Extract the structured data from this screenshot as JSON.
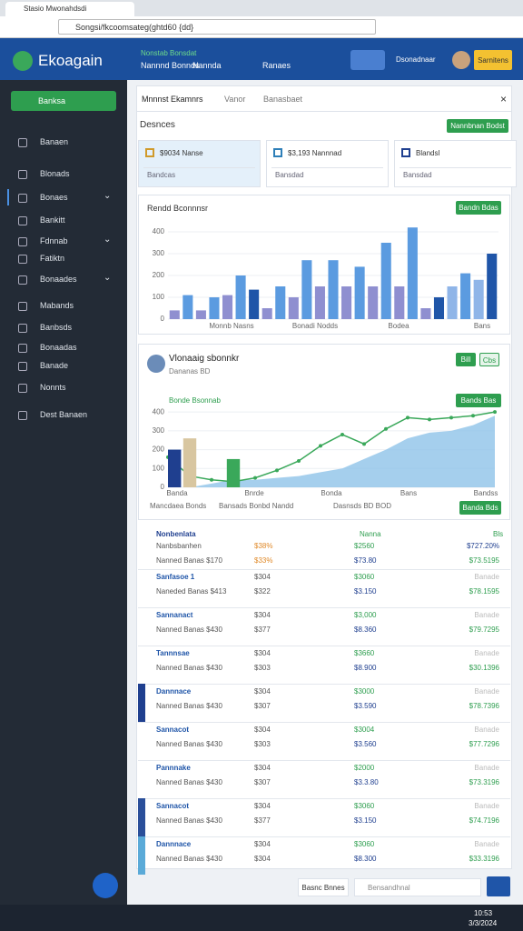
{
  "browser": {
    "tab_title": "Stasio Mwonahdsdi",
    "url": "Songsi/fkcoomsateg(ghtd60 {dd}"
  },
  "header": {
    "logo": "Ekoagain",
    "nav_caption": "Nonstab Bonsdat",
    "nav": [
      "Nannnd Bonnds",
      "Nannda",
      "Ranaes"
    ],
    "user": "Dsonadnaar",
    "action": "Sarnitens"
  },
  "sidebar": {
    "button": "Banksa",
    "items": [
      {
        "label": "Banaen"
      },
      {
        "label": "Blonads"
      },
      {
        "label": "Bonaes",
        "expand": true
      },
      {
        "label": "Bankitt"
      },
      {
        "label": "Fdnnab",
        "expand": true
      },
      {
        "label": "Fatiktn"
      },
      {
        "label": "Bonaades",
        "expand": true
      },
      {
        "label": "Mabands"
      },
      {
        "label": "Banbsds"
      },
      {
        "label": "Bonaadas"
      },
      {
        "label": "Banade"
      },
      {
        "label": "Nonnts"
      },
      {
        "label": "Dest Banaen"
      }
    ]
  },
  "tabs": [
    "Mnnnst Ekamnrs",
    "Vanor",
    "Banasbaet"
  ],
  "section": {
    "title": "Desnces",
    "button": "Nannbnan Bodst"
  },
  "cards": [
    {
      "title": "$9034 Nanse",
      "search": "Bandcas"
    },
    {
      "title": "$3,193 Nannnad",
      "search": "Bansdad"
    },
    {
      "title": "Blandsl",
      "search": "Bansdad"
    }
  ],
  "charts": [
    {
      "type": "bar",
      "title": "Rendd Bconnnsr",
      "button": "Bandn Bdas",
      "ylim": [
        0,
        450
      ],
      "yticks": [
        0,
        100,
        200,
        300,
        400
      ],
      "x_labels": [
        "Monnb Nasns",
        "Bonadi Nodds",
        "Bodea",
        "Bans"
      ],
      "values": [
        40,
        110,
        40,
        100,
        110,
        200,
        135,
        50,
        150,
        100,
        270,
        150,
        270,
        150,
        240,
        150,
        350,
        150,
        420,
        50,
        100,
        150,
        210,
        180,
        300
      ],
      "colors": [
        "#8f8fd0",
        "#5b9be0",
        "#8f8fd0",
        "#5b9be0",
        "#8f8fd0",
        "#5b9be0",
        "#1f55a8",
        "#8f8fd0",
        "#5b9be0",
        "#8f8fd0",
        "#5b9be0",
        "#8f8fd0",
        "#5b9be0",
        "#8f8fd0",
        "#5b9be0",
        "#8f8fd0",
        "#5b9be0",
        "#8f8fd0",
        "#5b9be0",
        "#8f8fd0",
        "#1f55a8",
        "#8fb5e8",
        "#5b9be0",
        "#8fb5e8",
        "#1f55a8"
      ]
    },
    {
      "type": "area",
      "name": "Vlonaaig sbonnkr",
      "subtitle": "Dananas BD",
      "buttons": [
        "Bill",
        "Cbs"
      ],
      "caption": "Bonde Bsonnab",
      "button": "Bands Bas",
      "ylim": [
        0,
        420
      ],
      "yticks": [
        0,
        100,
        200,
        300,
        400
      ],
      "x_labels": [
        "Banda",
        "Bnrde",
        "Bonda",
        "Bans",
        "Bandss"
      ],
      "footer": [
        "Mancdaea Bonds",
        "Bansads Bonbd Nandd",
        "Dasnsds BD BOD"
      ],
      "footer_button": "Banda Bds",
      "series": [
        {
          "color": "#8fc3e8",
          "values": [
            0,
            0,
            20,
            40,
            40,
            50,
            60,
            80,
            100,
            150,
            200,
            260,
            290,
            300,
            330,
            380
          ]
        },
        {
          "color": "#3aa85a",
          "values": [
            160,
            60,
            40,
            30,
            50,
            90,
            140,
            220,
            280,
            230,
            310,
            370,
            360,
            370,
            380,
            400
          ]
        }
      ],
      "bars": {
        "values": [
          200,
          260,
          null,
          150,
          null,
          null,
          null,
          null,
          null,
          null,
          null,
          null,
          null,
          null,
          null,
          null
        ],
        "colors": [
          "#1f3f8f",
          "#d8c6a0",
          null,
          "#3aa85a",
          null,
          null,
          null,
          null,
          null,
          null,
          null,
          null,
          null,
          null,
          null,
          null
        ]
      }
    }
  ],
  "table": {
    "header": [
      "Nonbenlata",
      "Nanna",
      "Bls"
    ],
    "rows": [
      [
        "Nanbsbanhen",
        "$38%",
        "$2560",
        "$727.20%",
        "Nanned Banas $170",
        "$33%",
        "$73.80",
        "$73.5195"
      ],
      [
        "Sanfasoe 1",
        "$304",
        "$3060",
        "Banade",
        "Naneded Banas $413",
        "$322",
        "$3.150",
        "$78.1595"
      ],
      [
        "Sannanact",
        "$304",
        "$3,000",
        "Banade",
        "Nanned Banas $430",
        "$377",
        "$8.360",
        "$79.7295"
      ],
      [
        "Tannnsae",
        "$304",
        "$3660",
        "Banade",
        "Nanned Banas $430",
        "$303",
        "$8.900",
        "$30.1396"
      ],
      [
        "Dannnace",
        "$304",
        "$3000",
        "Banade",
        "Nanned Banas $430",
        "$307",
        "$3.590",
        "$78.7396"
      ],
      [
        "Sannacot",
        "$304",
        "$3004",
        "Banade",
        "Nanned Banas $430",
        "$303",
        "$3.560",
        "$77.7296"
      ],
      [
        "Pannnake",
        "$304",
        "$2000",
        "Banade",
        "Nanned Banas $430",
        "$307",
        "$3.3.80",
        "$73.3196"
      ],
      [
        "Sannacot",
        "$304",
        "$3060",
        "Banade",
        "Nanned Banas $430",
        "$377",
        "$3.150",
        "$74.7196"
      ],
      [
        "Dannnace",
        "$304",
        "$3060",
        "Banade",
        "Nanned Banas $430",
        "$304",
        "$8.300",
        "$33.3196"
      ]
    ],
    "accents": [
      null,
      null,
      null,
      null,
      "#1f3f8f",
      null,
      null,
      "#2a4f9a",
      "#5aaad8"
    ]
  },
  "footer": {
    "button": "Basnc Bnnes",
    "search": "Bensandhnal"
  },
  "taskbar": {
    "time": "10:53",
    "date": "3/3/2024"
  }
}
